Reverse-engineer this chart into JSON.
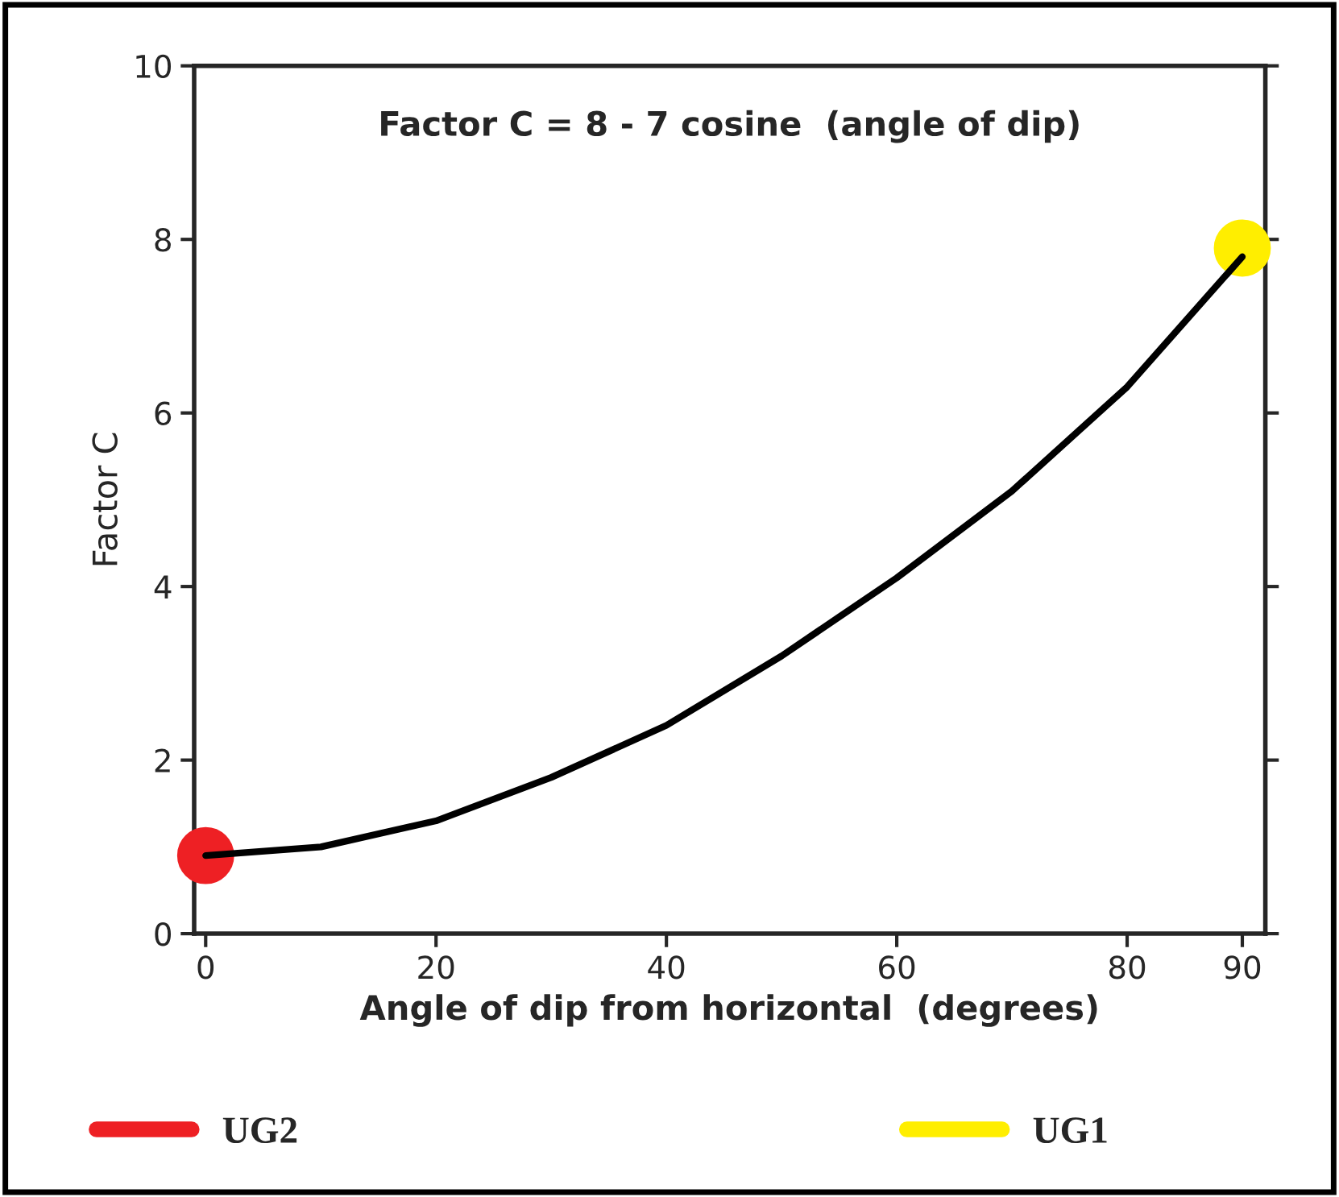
{
  "chart_data": {
    "type": "line",
    "xlabel": "Angle of dip from horizontal  (degrees)",
    "ylabel": "Factor C",
    "annotations": [
      "Factor C = 8 - 7 cosine  (angle of dip)"
    ],
    "xlim": [
      -1,
      92
    ],
    "xticks": [
      0,
      20,
      40,
      60,
      80,
      90
    ],
    "ylim": [
      0,
      10
    ],
    "yticks": [
      0,
      2,
      4,
      6,
      8,
      10
    ],
    "grid": false,
    "legend": "bottom",
    "series": [
      {
        "color": "#000000",
        "marker": "none",
        "line_style": "solid",
        "x": [
          0,
          10,
          20,
          30,
          40,
          50,
          60,
          70,
          80,
          90
        ],
        "values": [
          0.9,
          1.0,
          1.3,
          1.8,
          2.4,
          3.2,
          4.1,
          5.1,
          6.3,
          7.8
        ]
      },
      {
        "type": "scatter",
        "name": "UG2",
        "color": "#ee2024",
        "marker": "circle",
        "x": [
          0
        ],
        "values": [
          0.9
        ]
      },
      {
        "type": "scatter",
        "name": "UG1",
        "color": "#ffee00",
        "marker": "circle",
        "x": [
          90
        ],
        "values": [
          7.9
        ]
      }
    ]
  }
}
